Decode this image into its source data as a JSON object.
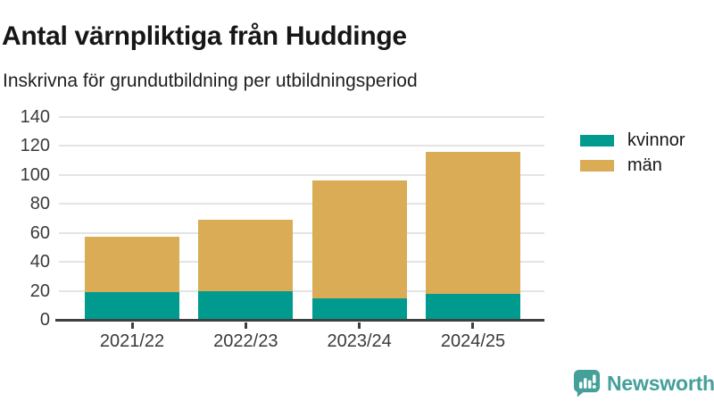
{
  "header": {
    "title": "Antal värnpliktiga från Huddinge",
    "subtitle": "Inskrivna för grundutbildning per utbildningsperiod"
  },
  "chart_data": {
    "type": "bar",
    "stacked": true,
    "categories": [
      "2021/22",
      "2022/23",
      "2023/24",
      "2024/25"
    ],
    "series": [
      {
        "name": "kvinnor",
        "color": "#009b8e",
        "values": [
          19,
          20,
          15,
          18
        ]
      },
      {
        "name": "män",
        "color": "#d9ac55",
        "values": [
          38,
          49,
          81,
          98
        ]
      }
    ],
    "totals": [
      57,
      69,
      96,
      116
    ],
    "title": "Antal värnpliktiga från Huddinge",
    "xlabel": "",
    "ylabel": "",
    "ylim": [
      0,
      140
    ],
    "yticks": [
      0,
      20,
      40,
      60,
      80,
      100,
      120,
      140
    ],
    "grid": true,
    "legend_position": "right"
  },
  "footer": {
    "brand": "Newsworthy"
  },
  "colors": {
    "kvinnor": "#009b8e",
    "man": "#d9ac55",
    "brand_teal": "#44a099",
    "axis": "#3f3f3f",
    "gridline": "#e4e4e4"
  }
}
